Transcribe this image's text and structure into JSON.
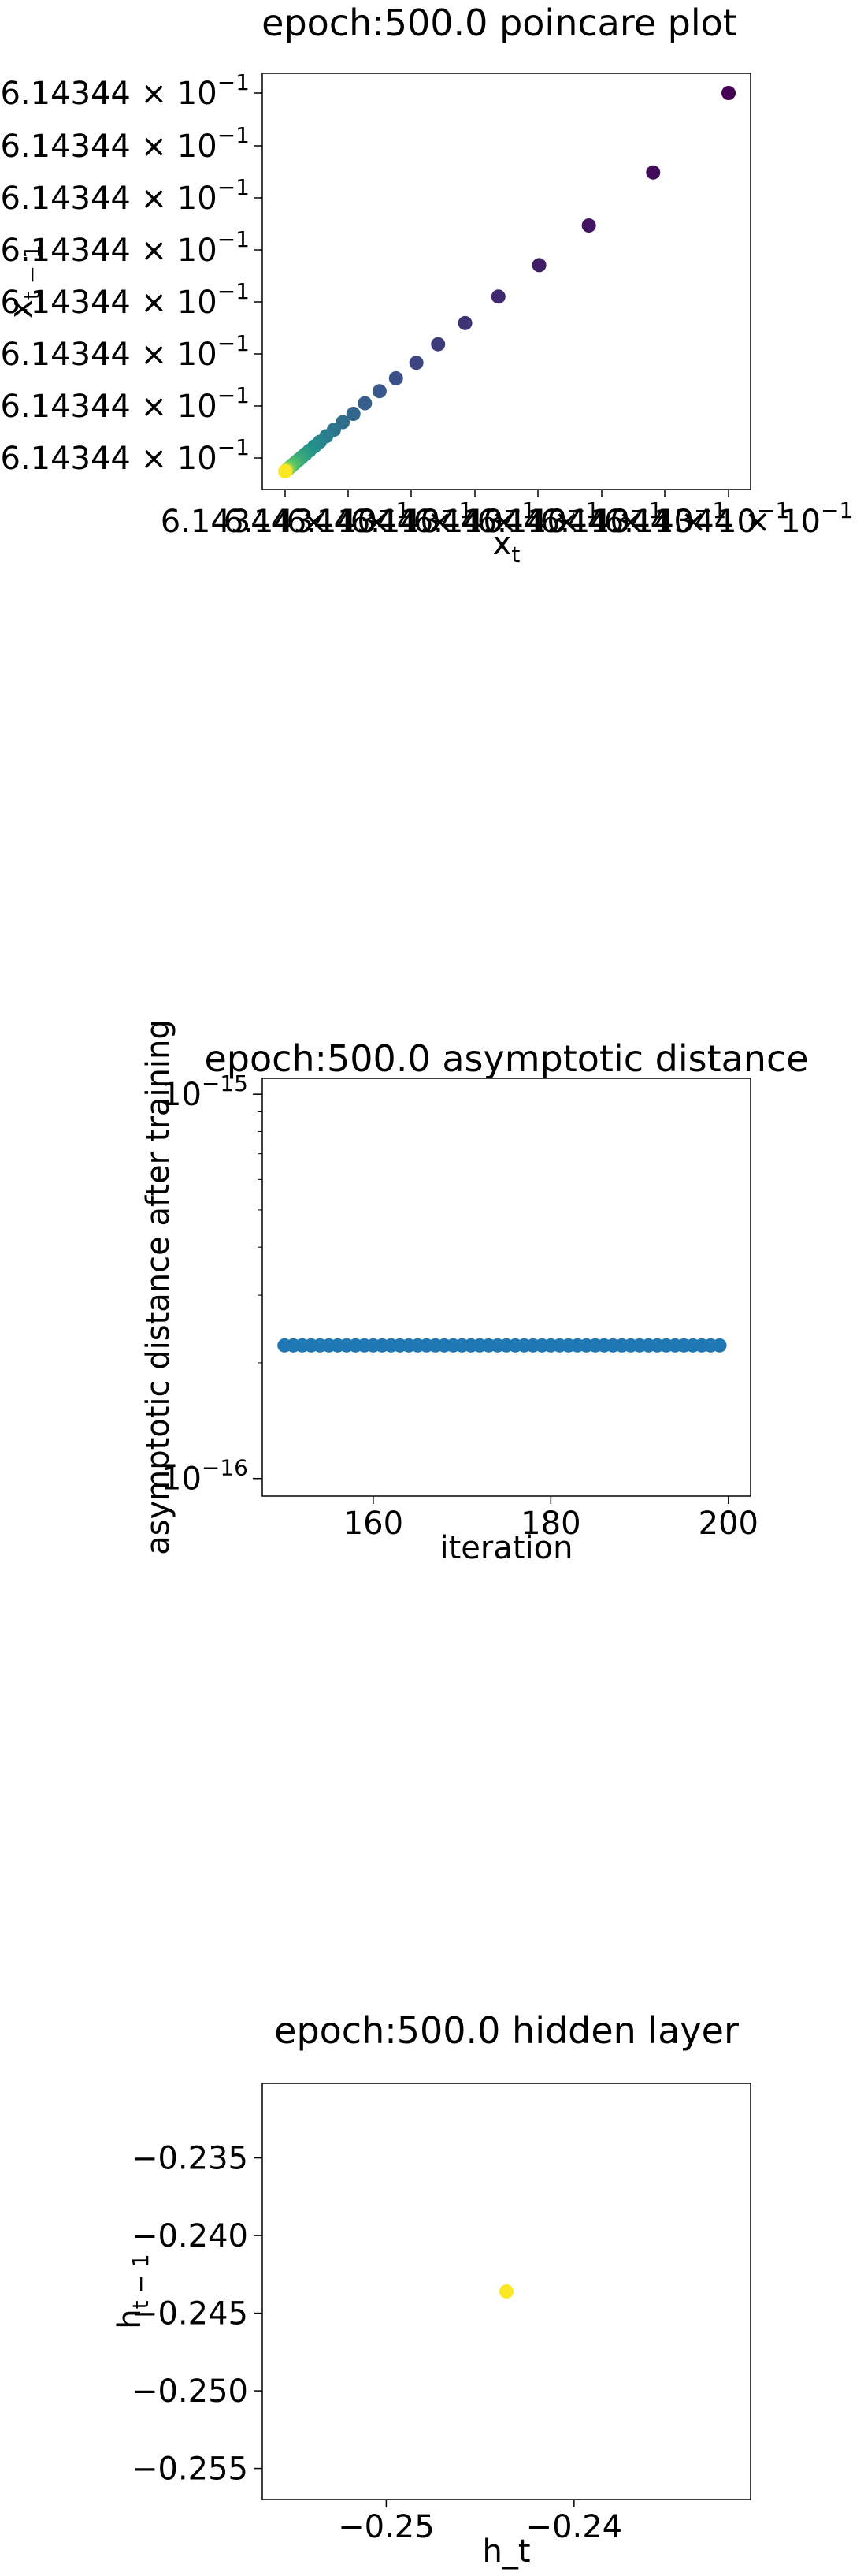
{
  "chart_data": [
    {
      "type": "scatter",
      "title": "epoch:500.0 poincare plot",
      "xlabel": "x_t",
      "ylabel": "x_{t-1}",
      "colormap": "viridis",
      "ytick_labels": [
        "6.14344 × 10^{-1}",
        "6.14344 × 10^{-1}",
        "6.14344 × 10^{-1}",
        "6.14344 × 10^{-1}",
        "6.14344 × 10^{-1}",
        "6.14344 × 10^{-1}",
        "6.14344 × 10^{-1}",
        "6.14344 × 10^{-1}"
      ],
      "xtick_labels": [
        "6.14344 × 10^{-1}",
        "6.14344 × 10^{-1}",
        "6.14344 × 10^{-1}",
        "6.14344 × 10^{-1}",
        "6.14344 × 10^{-1}",
        "6.14344 × 10^{-1}",
        "6.14344 × 10^{-1}",
        "6.14344 × 10^{-1}"
      ],
      "points": [
        {
          "x": 1.0,
          "y": 1.0,
          "c": 0.0
        },
        {
          "x": 0.83,
          "y": 0.79,
          "c": 0.03
        },
        {
          "x": 0.685,
          "y": 0.65,
          "c": 0.06
        },
        {
          "x": 0.573,
          "y": 0.545,
          "c": 0.09
        },
        {
          "x": 0.481,
          "y": 0.462,
          "c": 0.12
        },
        {
          "x": 0.406,
          "y": 0.392,
          "c": 0.15
        },
        {
          "x": 0.345,
          "y": 0.336,
          "c": 0.18
        },
        {
          "x": 0.296,
          "y": 0.287,
          "c": 0.21
        },
        {
          "x": 0.25,
          "y": 0.246,
          "c": 0.24
        },
        {
          "x": 0.213,
          "y": 0.212,
          "c": 0.27
        },
        {
          "x": 0.18,
          "y": 0.18,
          "c": 0.3
        },
        {
          "x": 0.154,
          "y": 0.152,
          "c": 0.33
        },
        {
          "x": 0.13,
          "y": 0.13,
          "c": 0.36
        },
        {
          "x": 0.11,
          "y": 0.11,
          "c": 0.39
        },
        {
          "x": 0.093,
          "y": 0.093,
          "c": 0.42
        },
        {
          "x": 0.078,
          "y": 0.078,
          "c": 0.45
        },
        {
          "x": 0.066,
          "y": 0.066,
          "c": 0.48
        },
        {
          "x": 0.055,
          "y": 0.055,
          "c": 0.51
        },
        {
          "x": 0.046,
          "y": 0.046,
          "c": 0.54
        },
        {
          "x": 0.038,
          "y": 0.038,
          "c": 0.57
        },
        {
          "x": 0.031,
          "y": 0.031,
          "c": 0.6
        },
        {
          "x": 0.025,
          "y": 0.025,
          "c": 0.63
        },
        {
          "x": 0.02,
          "y": 0.02,
          "c": 0.66
        },
        {
          "x": 0.016,
          "y": 0.016,
          "c": 0.69
        },
        {
          "x": 0.012,
          "y": 0.012,
          "c": 0.72
        },
        {
          "x": 0.009,
          "y": 0.009,
          "c": 0.75
        },
        {
          "x": 0.006,
          "y": 0.006,
          "c": 0.8
        },
        {
          "x": 0.003,
          "y": 0.003,
          "c": 0.88
        },
        {
          "x": 0.0,
          "y": 0.0,
          "c": 1.0
        }
      ]
    },
    {
      "type": "scatter",
      "title": "epoch:500.0 asymptotic distance",
      "xlabel": "iteration",
      "ylabel": "asymptotic distance after training",
      "yscale": "log",
      "ylim": [
        9e-17,
        1.1e-15
      ],
      "xlim": [
        147.5,
        202.5
      ],
      "xticks": [
        160,
        180,
        200
      ],
      "ytick_labels": [
        "10^{-15}",
        "10^{-16}"
      ],
      "color": "#1f77b4",
      "x_start": 150,
      "x_end": 199,
      "y_value": 2.22e-16
    },
    {
      "type": "scatter",
      "title": "epoch:500.0 hidden layer",
      "xlabel": "h_t",
      "ylabel": "h_{t-1}",
      "xlim": [
        -0.2566,
        -0.2306
      ],
      "ylim": [
        -0.257,
        -0.2302
      ],
      "xticks": [
        -0.25,
        -0.24
      ],
      "yticks": [
        -0.235,
        -0.24,
        -0.245,
        -0.25,
        -0.255
      ],
      "xtick_labels": [
        "−0.25",
        "−0.24"
      ],
      "ytick_labels": [
        "−0.235",
        "−0.240",
        "−0.245",
        "−0.250",
        "−0.255"
      ],
      "points": [
        {
          "x": -0.2436,
          "y": -0.2436
        }
      ],
      "color": "#fde725"
    }
  ]
}
